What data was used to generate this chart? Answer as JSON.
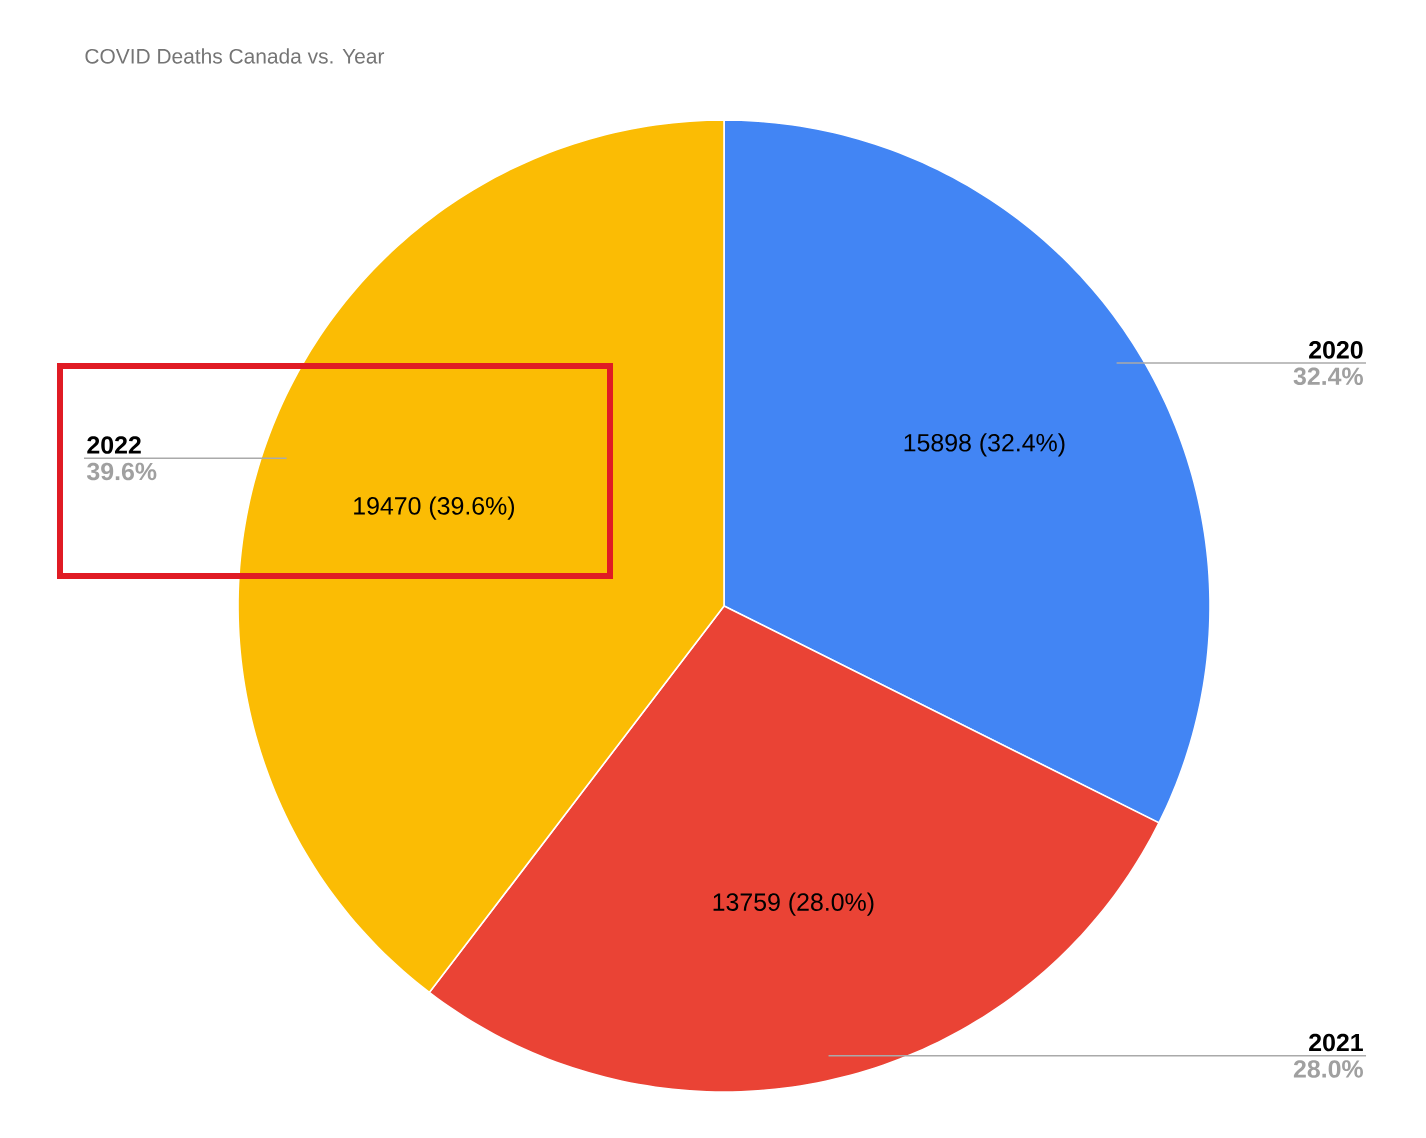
{
  "chart_data": {
    "type": "pie",
    "title": "COVID Deaths Canada vs. Year",
    "categories": [
      "2020",
      "2021",
      "2022"
    ],
    "values": [
      15898,
      13759,
      19470
    ],
    "colors": [
      "#4285f4",
      "#ea4335",
      "#fbbc04"
    ],
    "value_labels": [
      "15898 (32.4%)",
      "13759 (28.0%)",
      "19470 (39.6%)"
    ],
    "annotations": [
      "32.4%",
      "28.0%",
      "39.6%"
    ]
  }
}
